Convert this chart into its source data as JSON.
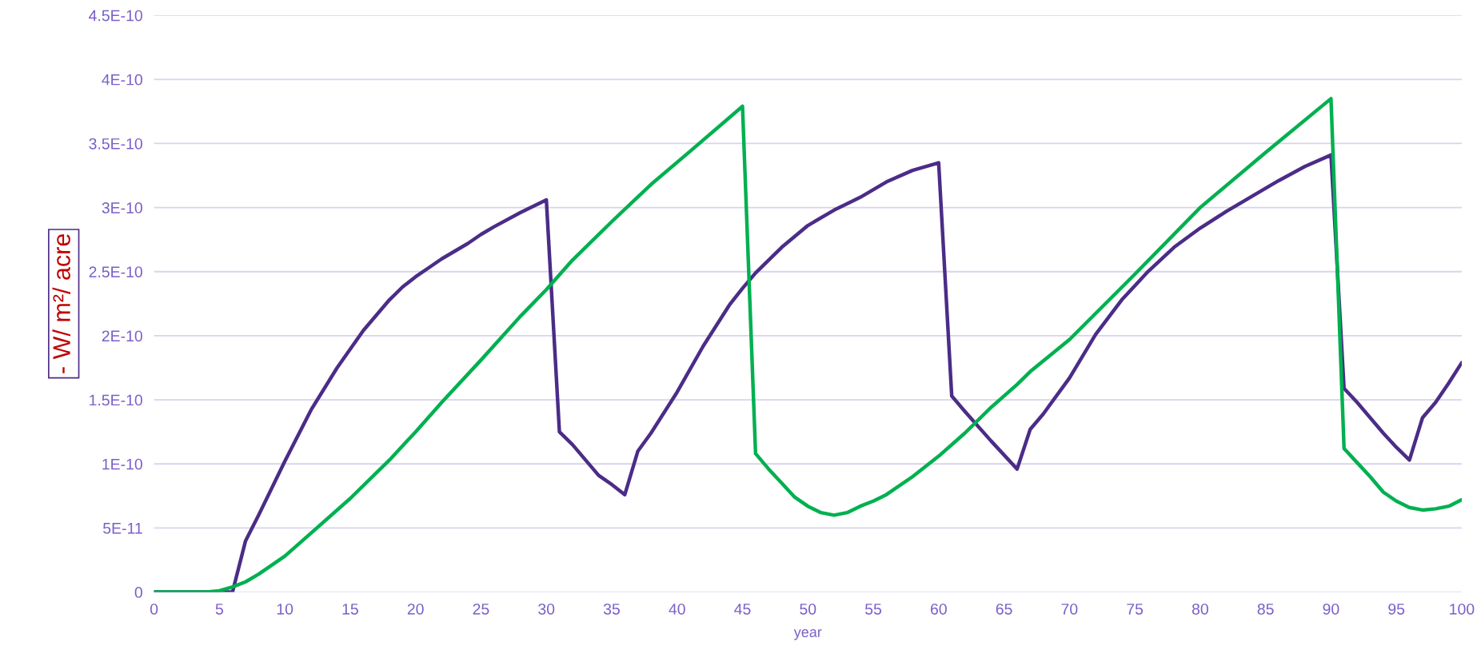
{
  "chart_data": {
    "type": "line",
    "xlabel": "year",
    "ylabel": "- W/ m²/ acre",
    "xlim": [
      0,
      100
    ],
    "xticks": [
      0,
      5,
      10,
      15,
      20,
      25,
      30,
      35,
      40,
      45,
      50,
      55,
      60,
      65,
      70,
      75,
      80,
      85,
      90,
      95,
      100
    ],
    "ylim": [
      0,
      4.5e-10
    ],
    "yticks": [
      0,
      {
        "value": 5e-11,
        "label": "5E-11"
      },
      {
        "value": 1e-10,
        "label": "1E-10"
      },
      {
        "value": 1.5e-10,
        "label": "1.5E-10"
      },
      {
        "value": 2e-10,
        "label": "2E-10"
      },
      {
        "value": 2.5e-10,
        "label": "2.5E-10"
      },
      {
        "value": 3e-10,
        "label": "3E-10"
      },
      {
        "value": 3.5e-10,
        "label": "3.5E-10"
      },
      {
        "value": 4e-10,
        "label": "4E-10"
      },
      {
        "value": 4.5e-10,
        "label": "4.5E-10"
      }
    ],
    "grid": "y",
    "series": [
      {
        "color": "#4b2c87",
        "x": [
          0,
          6,
          7,
          8,
          10,
          12,
          14,
          16,
          18,
          19,
          20,
          21,
          22,
          24,
          25,
          26,
          28,
          29,
          30,
          31,
          32,
          34,
          35,
          36,
          37,
          38,
          40,
          42,
          44,
          45,
          46,
          48,
          50,
          52,
          54,
          56,
          58,
          60,
          61,
          62,
          64,
          66,
          67,
          68,
          70,
          72,
          74,
          75,
          76,
          78,
          80,
          82,
          84,
          86,
          88,
          90,
          91,
          92,
          94,
          95,
          96,
          97,
          98,
          99,
          100
        ],
        "values": [
          0,
          0,
          4e-11,
          6e-11,
          1.02e-10,
          1.42e-10,
          1.75e-10,
          2.04e-10,
          2.28e-10,
          2.38e-10,
          2.46e-10,
          2.53e-10,
          2.6e-10,
          2.72e-10,
          2.79e-10,
          2.85e-10,
          2.96e-10,
          3.01e-10,
          3.06e-10,
          1.25e-10,
          1.15e-10,
          9.1e-11,
          8.4e-11,
          7.6e-11,
          1.1e-10,
          1.24e-10,
          1.56e-10,
          1.92e-10,
          2.24e-10,
          2.37e-10,
          2.49e-10,
          2.69e-10,
          2.86e-10,
          2.98e-10,
          3.08e-10,
          3.2e-10,
          3.29e-10,
          3.35e-10,
          1.53e-10,
          1.41e-10,
          1.18e-10,
          9.6e-11,
          1.27e-10,
          1.39e-10,
          1.67e-10,
          2.01e-10,
          2.28e-10,
          2.39e-10,
          2.5e-10,
          2.69e-10,
          2.84e-10,
          2.97e-10,
          3.09e-10,
          3.21e-10,
          3.32e-10,
          3.41e-10,
          1.59e-10,
          1.48e-10,
          1.24e-10,
          1.13e-10,
          1.03e-10,
          1.36e-10,
          1.48e-10,
          1.63e-10,
          1.79e-10
        ]
      },
      {
        "color": "#00b050",
        "x": [
          0,
          4,
          5,
          6,
          7,
          8,
          10,
          12,
          15,
          18,
          20,
          22,
          25,
          28,
          30,
          32,
          35,
          38,
          41,
          45,
          46,
          47,
          48,
          49,
          50,
          51,
          52,
          53,
          54,
          55,
          56,
          58,
          60,
          62,
          64,
          66,
          67,
          70,
          75,
          80,
          85,
          90,
          91,
          92,
          93,
          94,
          95,
          96,
          97,
          98,
          99,
          100
        ],
        "values": [
          0,
          0,
          1e-12,
          4e-12,
          8e-12,
          1.4e-11,
          2.8e-11,
          4.6e-11,
          7.3e-11,
          1.03e-10,
          1.25e-10,
          1.48e-10,
          1.81e-10,
          2.15e-10,
          2.36e-10,
          2.59e-10,
          2.89e-10,
          3.18e-10,
          3.44e-10,
          3.79e-10,
          1.08e-10,
          9.6e-11,
          8.5e-11,
          7.4e-11,
          6.7e-11,
          6.2e-11,
          6e-11,
          6.2e-11,
          6.7e-11,
          7.1e-11,
          7.6e-11,
          9e-11,
          1.06e-10,
          1.24e-10,
          1.44e-10,
          1.62e-10,
          1.72e-10,
          1.97e-10,
          2.48e-10,
          3e-10,
          3.43e-10,
          3.85e-10,
          1.12e-10,
          1.01e-10,
          9e-11,
          7.8e-11,
          7.1e-11,
          6.6e-11,
          6.4e-11,
          6.5e-11,
          6.7e-11,
          7.2e-11
        ]
      }
    ]
  }
}
